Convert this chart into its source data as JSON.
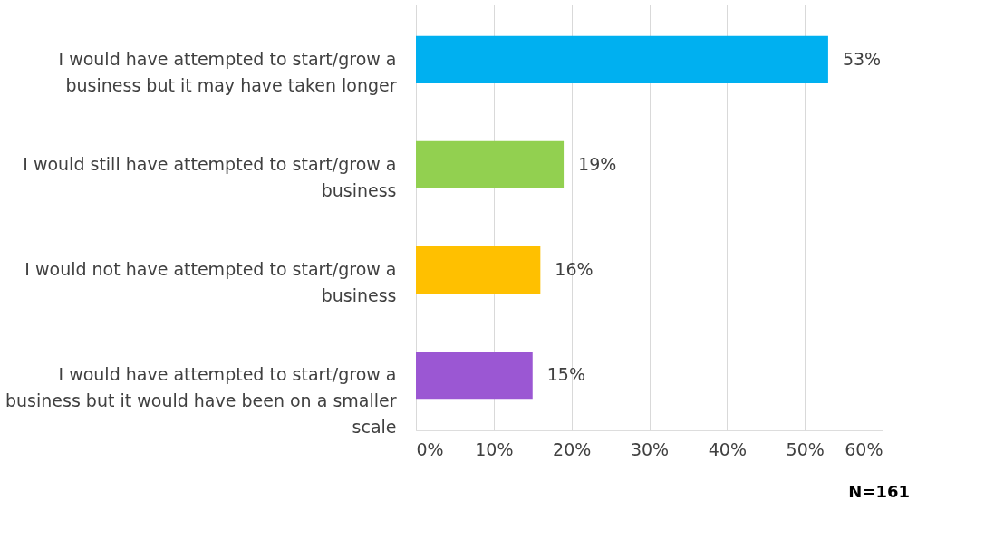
{
  "chart_data": {
    "type": "bar",
    "orientation": "horizontal",
    "categories": [
      "I would have attempted to start/grow a business but it may have taken longer",
      "I would still have attempted to start/grow a business",
      "I would not have attempted to start/grow a business",
      "I would have attempted to start/grow a business but it would have been on a smaller scale"
    ],
    "values": [
      53,
      19,
      16,
      15
    ],
    "colors": [
      "#00b0f0",
      "#92d050",
      "#ffc000",
      "#9b57d3"
    ],
    "value_labels": [
      "53%",
      "19%",
      "16%",
      "15%"
    ],
    "xlim": [
      0,
      60
    ],
    "xticks": [
      {
        "value": 0,
        "label": "0%"
      },
      {
        "value": 10,
        "label": "10%"
      },
      {
        "value": 20,
        "label": "20%"
      },
      {
        "value": 30,
        "label": "30%"
      },
      {
        "value": 40,
        "label": "40%"
      },
      {
        "value": 50,
        "label": "50%"
      },
      {
        "value": 60,
        "label": "60%"
      }
    ],
    "grid": "x",
    "annotations": [
      "N=161"
    ]
  }
}
